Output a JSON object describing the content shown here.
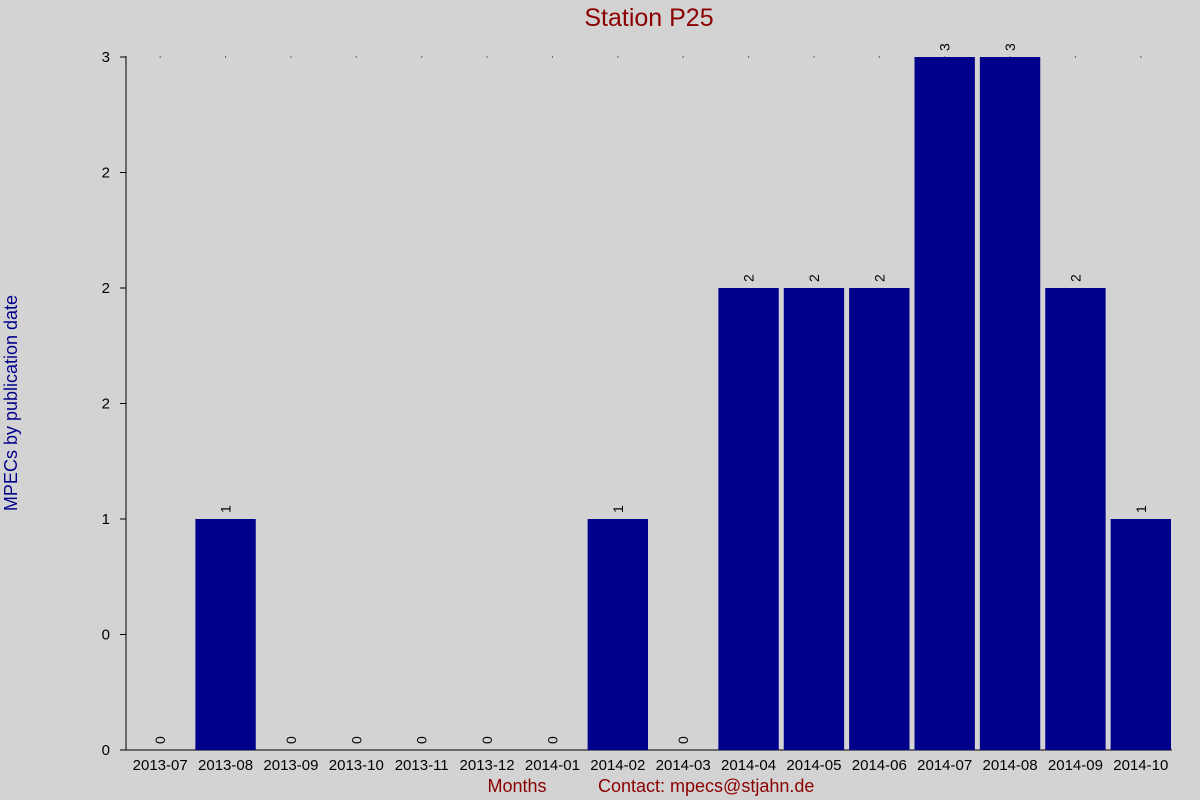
{
  "chart_data": {
    "type": "bar",
    "title": "Station P25",
    "xlabel": "Months",
    "ylabel": "MPECs by publication date",
    "contact": "Contact: mpecs@stjahn.de",
    "categories": [
      "2013-07",
      "2013-08",
      "2013-09",
      "2013-10",
      "2013-11",
      "2013-12",
      "2014-01",
      "2014-02",
      "2014-03",
      "2014-04",
      "2014-05",
      "2014-06",
      "2014-07",
      "2014-08",
      "2014-09",
      "2014-10"
    ],
    "values": [
      0,
      1,
      0,
      0,
      0,
      0,
      0,
      1,
      0,
      2,
      2,
      2,
      3,
      3,
      2,
      1
    ],
    "y_ticks": [
      {
        "value": 0,
        "label": "0"
      },
      {
        "value": 0.5,
        "label": "0"
      },
      {
        "value": 1,
        "label": "1"
      },
      {
        "value": 1.5,
        "label": "2"
      },
      {
        "value": 2,
        "label": "2"
      },
      {
        "value": 2.5,
        "label": "2"
      },
      {
        "value": 3,
        "label": "3"
      }
    ],
    "ylim": [
      0,
      3
    ],
    "bar_color": "#00008b",
    "background": "#d3d3d3",
    "grid": false
  }
}
